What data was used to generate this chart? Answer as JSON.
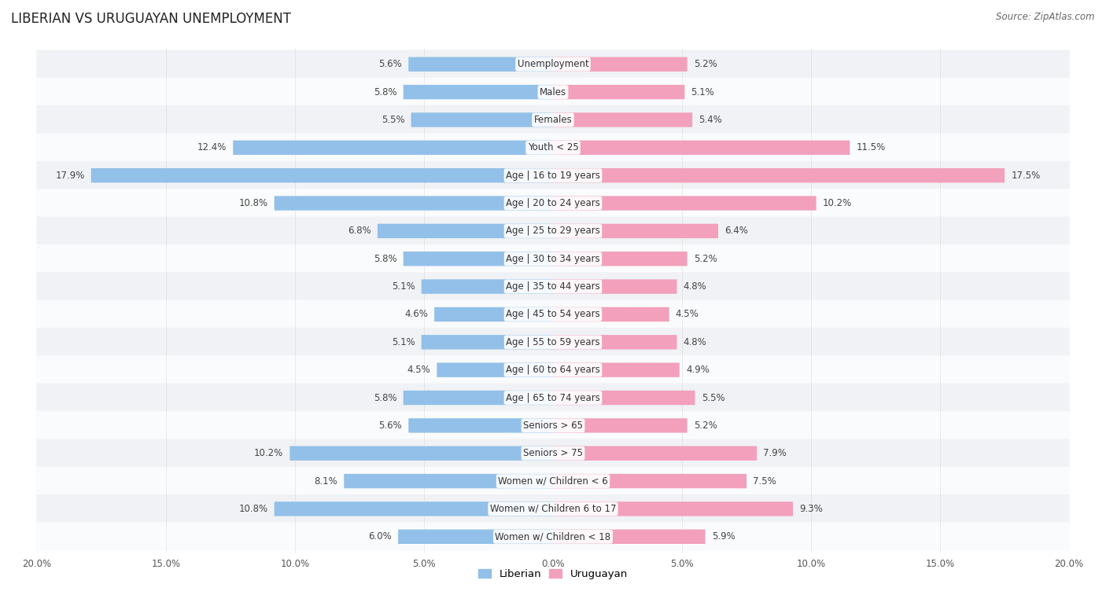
{
  "title": "LIBERIAN VS URUGUAYAN UNEMPLOYMENT",
  "source": "Source: ZipAtlas.com",
  "categories": [
    "Unemployment",
    "Males",
    "Females",
    "Youth < 25",
    "Age | 16 to 19 years",
    "Age | 20 to 24 years",
    "Age | 25 to 29 years",
    "Age | 30 to 34 years",
    "Age | 35 to 44 years",
    "Age | 45 to 54 years",
    "Age | 55 to 59 years",
    "Age | 60 to 64 years",
    "Age | 65 to 74 years",
    "Seniors > 65",
    "Seniors > 75",
    "Women w/ Children < 6",
    "Women w/ Children 6 to 17",
    "Women w/ Children < 18"
  ],
  "liberian": [
    5.6,
    5.8,
    5.5,
    12.4,
    17.9,
    10.8,
    6.8,
    5.8,
    5.1,
    4.6,
    5.1,
    4.5,
    5.8,
    5.6,
    10.2,
    8.1,
    10.8,
    6.0
  ],
  "uruguayan": [
    5.2,
    5.1,
    5.4,
    11.5,
    17.5,
    10.2,
    6.4,
    5.2,
    4.8,
    4.5,
    4.8,
    4.9,
    5.5,
    5.2,
    7.9,
    7.5,
    9.3,
    5.9
  ],
  "liberian_color": "#92C0E8",
  "uruguayan_color": "#F2A0BB",
  "background_color": "#ffffff",
  "row_bg_even": "#f0f2f5",
  "row_bg_odd": "#fafbfc",
  "max_val": 20.0,
  "label_fontsize": 8.5,
  "title_fontsize": 12,
  "source_fontsize": 8.5,
  "tick_fontsize": 8.5
}
